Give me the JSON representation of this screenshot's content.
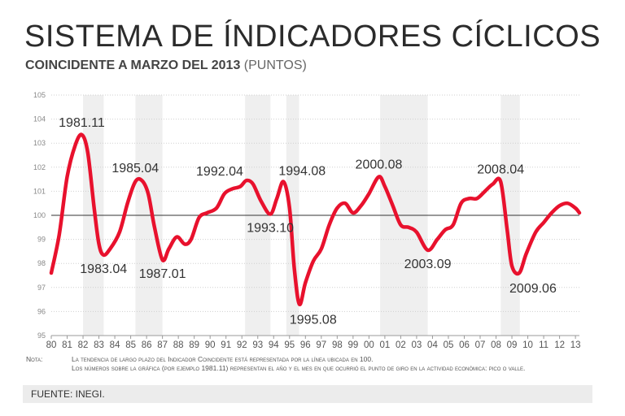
{
  "header": {
    "title": "SISTEMA DE ÍNDICADORES CÍCLICOS",
    "subtitle_bold": "COINCIDENTE A MARZO DEL 2013",
    "subtitle_unit": "(PUNTOS)"
  },
  "notes": {
    "label": "Nota:",
    "line1": "La tendencia de largo plazo del Indicador Coincidente está representada por la línea ubicada en 100.",
    "line2": "Los números sobre la gráfica (por ejemplo 1981.11) representan el año y el mes en que ocurrió el punto de giro en la actividad económica: pico o valle."
  },
  "source": "FUENTE: INEGI.",
  "colors": {
    "line": "#e8112d",
    "grid": "#cfcfcf",
    "band": "#efefef",
    "trend": "#333333"
  },
  "chart_data": {
    "type": "line",
    "title": "SISTEMA DE ÍNDICADORES CÍCLICOS",
    "ylim": [
      95,
      105
    ],
    "yticks": [
      95,
      96,
      97,
      98,
      99,
      100,
      101,
      102,
      103,
      104,
      105
    ],
    "xlim": [
      1980,
      2013.25
    ],
    "xtick_labels": [
      "80",
      "81",
      "82",
      "83",
      "84",
      "85",
      "86",
      "87",
      "88",
      "89",
      "90",
      "91",
      "92",
      "93",
      "94",
      "95",
      "96",
      "97",
      "98",
      "99",
      "00",
      "01",
      "02",
      "03",
      "04",
      "05",
      "06",
      "07",
      "08",
      "09",
      "10",
      "11",
      "12",
      "13"
    ],
    "trend_line": 100,
    "recession_bands": [
      [
        1982.0,
        1983.3
      ],
      [
        1985.3,
        1987.0
      ],
      [
        1992.2,
        1993.8
      ],
      [
        1994.8,
        1995.6
      ],
      [
        2000.7,
        2003.7
      ],
      [
        2008.3,
        2009.5
      ]
    ],
    "series": [
      {
        "name": "Indicador Coincidente",
        "x": [
          1980.0,
          1980.5,
          1981.0,
          1981.5,
          1981.92,
          1982.3,
          1982.7,
          1983.0,
          1983.29,
          1983.7,
          1984.3,
          1984.8,
          1985.29,
          1985.7,
          1986.1,
          1986.5,
          1987.0,
          1987.4,
          1987.9,
          1988.4,
          1988.8,
          1989.3,
          1989.8,
          1990.4,
          1990.9,
          1991.4,
          1991.9,
          1992.29,
          1992.7,
          1993.2,
          1993.79,
          1994.2,
          1994.62,
          1995.0,
          1995.3,
          1995.62,
          1996.0,
          1996.5,
          1997.0,
          1997.5,
          1998.0,
          1998.5,
          1999.0,
          1999.5,
          2000.0,
          2000.62,
          2001.0,
          2001.5,
          2002.0,
          2002.5,
          2003.0,
          2003.7,
          2004.3,
          2004.8,
          2005.3,
          2005.8,
          2006.3,
          2006.8,
          2007.3,
          2007.8,
          2008.29,
          2008.7,
          2009.0,
          2009.46,
          2009.9,
          2010.5,
          2011.0,
          2011.5,
          2012.0,
          2012.5,
          2013.0,
          2013.25
        ],
        "values": [
          97.6,
          99.2,
          101.6,
          102.9,
          103.35,
          102.6,
          100.3,
          98.8,
          98.35,
          98.6,
          99.3,
          100.5,
          101.4,
          101.45,
          100.9,
          99.5,
          98.15,
          98.6,
          99.1,
          98.8,
          99.0,
          99.9,
          100.1,
          100.3,
          100.9,
          101.1,
          101.2,
          101.45,
          101.3,
          100.6,
          100.05,
          100.7,
          101.4,
          100.3,
          97.8,
          96.3,
          97.2,
          98.1,
          98.6,
          99.6,
          100.3,
          100.5,
          100.1,
          100.4,
          100.9,
          101.6,
          101.2,
          100.4,
          99.6,
          99.5,
          99.3,
          98.55,
          99.0,
          99.4,
          99.6,
          100.5,
          100.7,
          100.7,
          101.0,
          101.3,
          101.4,
          99.4,
          97.9,
          97.6,
          98.4,
          99.3,
          99.7,
          100.1,
          100.4,
          100.5,
          100.3,
          100.1
        ]
      }
    ],
    "annotations": [
      {
        "label": "1981.11",
        "x": 1981.92,
        "y": 103.35,
        "pos": "above"
      },
      {
        "label": "1983.04",
        "x": 1983.29,
        "y": 98.35,
        "pos": "below"
      },
      {
        "label": "1985.04",
        "x": 1985.29,
        "y": 101.45,
        "pos": "above"
      },
      {
        "label": "1987.01",
        "x": 1987.0,
        "y": 98.15,
        "pos": "below"
      },
      {
        "label": "1992.04",
        "x": 1992.29,
        "y": 101.45,
        "pos": "above-left"
      },
      {
        "label": "1993.10",
        "x": 1993.79,
        "y": 100.05,
        "pos": "below"
      },
      {
        "label": "1994.08",
        "x": 1994.62,
        "y": 101.4,
        "pos": "above-right"
      },
      {
        "label": "1995.08",
        "x": 1995.62,
        "y": 96.3,
        "pos": "below-right"
      },
      {
        "label": "2000.08",
        "x": 2000.62,
        "y": 101.6,
        "pos": "above"
      },
      {
        "label": "2003.09",
        "x": 2003.7,
        "y": 98.55,
        "pos": "below"
      },
      {
        "label": "2008.04",
        "x": 2008.29,
        "y": 101.4,
        "pos": "above"
      },
      {
        "label": "2009.06",
        "x": 2009.46,
        "y": 97.6,
        "pos": "below-right"
      }
    ]
  }
}
